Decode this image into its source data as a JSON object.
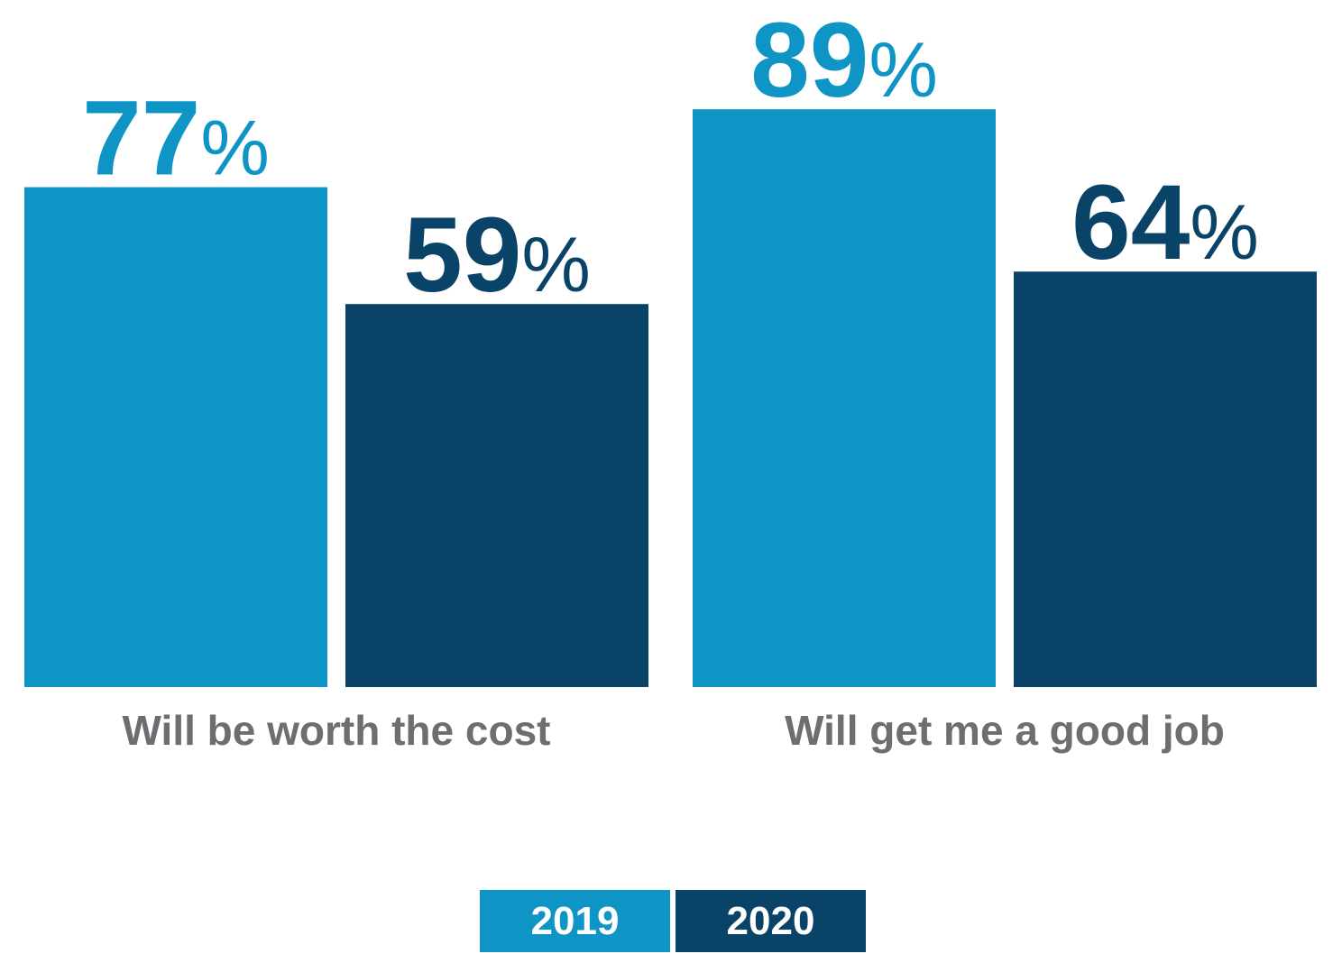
{
  "chart_data": {
    "type": "bar",
    "categories": [
      "Will be worth the cost",
      "Will get me a good job"
    ],
    "series": [
      {
        "name": "2019",
        "color": "#0f95c5",
        "values": [
          77,
          89
        ]
      },
      {
        "name": "2020",
        "color": "#094367",
        "values": [
          59,
          64
        ]
      }
    ],
    "unit": "%",
    "ylim": [
      0,
      100
    ],
    "grid": false,
    "legend_position": "bottom-center"
  }
}
